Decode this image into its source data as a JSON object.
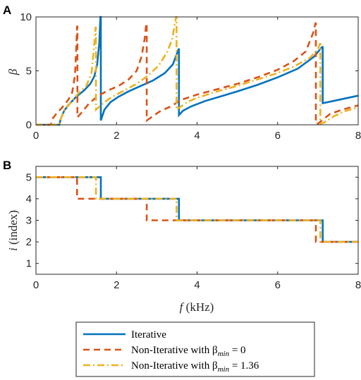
{
  "chart_data": [
    {
      "panel": "A",
      "type": "line",
      "xlabel": "",
      "ylabel": "β",
      "xlim": [
        0,
        8
      ],
      "ylim": [
        0,
        10
      ],
      "xticks": [
        0,
        2,
        4,
        6,
        8
      ],
      "yticks": [
        0,
        5,
        10
      ],
      "series": [
        {
          "name": "Iterative",
          "color": "#0072BD",
          "style": "solid",
          "points": [
            [
              0,
              0
            ],
            [
              0.58,
              0
            ],
            [
              0.62,
              0.6
            ],
            [
              0.7,
              1.3
            ],
            [
              0.8,
              1.8
            ],
            [
              1.0,
              2.6
            ],
            [
              1.2,
              3.2
            ],
            [
              1.35,
              3.8
            ],
            [
              1.45,
              4.5
            ],
            [
              1.52,
              5.6
            ],
            [
              1.57,
              7.5
            ],
            [
              1.6,
              10
            ],
            [
              1.61,
              10
            ],
            [
              1.61,
              0.4
            ],
            [
              1.7,
              1.4
            ],
            [
              1.85,
              2.1
            ],
            [
              2.05,
              2.6
            ],
            [
              2.3,
              3.1
            ],
            [
              2.6,
              3.6
            ],
            [
              2.9,
              4.1
            ],
            [
              3.2,
              4.8
            ],
            [
              3.4,
              5.6
            ],
            [
              3.54,
              7.0
            ],
            [
              3.55,
              7.0
            ],
            [
              3.55,
              0.9
            ],
            [
              3.65,
              1.3
            ],
            [
              3.85,
              1.7
            ],
            [
              4.2,
              2.2
            ],
            [
              4.6,
              2.65
            ],
            [
              5.0,
              3.1
            ],
            [
              5.5,
              3.7
            ],
            [
              6.0,
              4.4
            ],
            [
              6.5,
              5.2
            ],
            [
              6.9,
              6.3
            ],
            [
              7.1,
              7.2
            ],
            [
              7.12,
              7.2
            ],
            [
              7.12,
              2.0
            ],
            [
              7.5,
              2.3
            ],
            [
              8,
              2.7
            ]
          ]
        },
        {
          "name": "Non-Iterative with β_min = 0",
          "color": "#D95319",
          "style": "dashed",
          "points": [
            [
              0,
              0
            ],
            [
              0.37,
              0
            ],
            [
              0.4,
              0.5
            ],
            [
              0.5,
              1.0
            ],
            [
              0.65,
              1.6
            ],
            [
              0.8,
              2.3
            ],
            [
              0.9,
              3.0
            ],
            [
              0.97,
              4.6
            ],
            [
              1.0,
              7.0
            ],
            [
              1.02,
              9.1
            ],
            [
              1.03,
              9.1
            ],
            [
              1.03,
              0.7
            ],
            [
              1.15,
              1.2
            ],
            [
              1.3,
              1.9
            ],
            [
              1.45,
              2.4
            ],
            [
              1.6,
              2.8
            ],
            [
              1.8,
              3.2
            ],
            [
              2.05,
              3.6
            ],
            [
              2.3,
              4.2
            ],
            [
              2.5,
              5.0
            ],
            [
              2.62,
              6.3
            ],
            [
              2.7,
              8.0
            ],
            [
              2.74,
              9.4
            ],
            [
              2.75,
              9.4
            ],
            [
              2.75,
              0.4
            ],
            [
              2.9,
              0.8
            ],
            [
              3.1,
              1.3
            ],
            [
              3.35,
              1.7
            ],
            [
              3.6,
              2.3
            ],
            [
              4.0,
              2.8
            ],
            [
              4.5,
              3.3
            ],
            [
              5.0,
              3.8
            ],
            [
              5.5,
              4.4
            ],
            [
              6.0,
              5.1
            ],
            [
              6.4,
              5.9
            ],
            [
              6.7,
              6.8
            ],
            [
              6.88,
              8.5
            ],
            [
              6.94,
              9.4
            ],
            [
              6.95,
              9.4
            ],
            [
              6.95,
              0.1
            ],
            [
              7.0,
              0.1
            ],
            [
              7.1,
              0.4
            ],
            [
              7.3,
              1.0
            ],
            [
              7.6,
              1.4
            ],
            [
              8,
              1.8
            ]
          ]
        },
        {
          "name": "Non-Iterative with β_min = 1.36",
          "color": "#EDB120",
          "style": "dashdot",
          "points": [
            [
              0,
              0
            ],
            [
              0.58,
              0
            ],
            [
              0.62,
              0.6
            ],
            [
              0.7,
              1.3
            ],
            [
              0.85,
              2.0
            ],
            [
              1.05,
              2.9
            ],
            [
              1.25,
              3.6
            ],
            [
              1.38,
              4.8
            ],
            [
              1.45,
              7.5
            ],
            [
              1.48,
              9.0
            ],
            [
              1.49,
              9.0
            ],
            [
              1.49,
              1.4
            ],
            [
              1.7,
              2.1
            ],
            [
              1.9,
              2.6
            ],
            [
              2.2,
              3.2
            ],
            [
              2.5,
              3.8
            ],
            [
              2.8,
              4.6
            ],
            [
              3.05,
              5.5
            ],
            [
              3.25,
              6.7
            ],
            [
              3.38,
              7.9
            ],
            [
              3.45,
              9.4
            ],
            [
              3.48,
              10
            ],
            [
              3.49,
              10
            ],
            [
              3.49,
              1.4
            ],
            [
              3.75,
              2.1
            ],
            [
              4.0,
              2.5
            ],
            [
              4.5,
              3.1
            ],
            [
              5.0,
              3.6
            ],
            [
              5.5,
              4.2
            ],
            [
              6.0,
              4.8
            ],
            [
              6.4,
              5.4
            ],
            [
              6.8,
              6.2
            ],
            [
              7.0,
              7.0
            ],
            [
              7.05,
              7.5
            ],
            [
              7.06,
              7.5
            ],
            [
              7.06,
              0.1
            ],
            [
              7.15,
              0.2
            ],
            [
              7.4,
              0.8
            ],
            [
              7.7,
              1.3
            ],
            [
              8,
              1.6
            ]
          ]
        }
      ]
    },
    {
      "panel": "B",
      "type": "line",
      "xlabel": "f (kHz)",
      "ylabel": "i (index)",
      "xlim": [
        0,
        8
      ],
      "ylim": [
        0.5,
        5.5
      ],
      "xticks": [
        0,
        2,
        4,
        6,
        8
      ],
      "yticks": [
        1,
        2,
        3,
        4,
        5
      ],
      "series": [
        {
          "name": "Iterative",
          "color": "#0072BD",
          "style": "solid",
          "points": [
            [
              0,
              5
            ],
            [
              1.61,
              5
            ],
            [
              1.61,
              4
            ],
            [
              3.55,
              4
            ],
            [
              3.55,
              3
            ],
            [
              7.12,
              3
            ],
            [
              7.12,
              2
            ],
            [
              8,
              2
            ]
          ]
        },
        {
          "name": "Non-Iterative with β_min = 0",
          "color": "#D95319",
          "style": "dashed",
          "points": [
            [
              0,
              5
            ],
            [
              1.02,
              5
            ],
            [
              1.02,
              4
            ],
            [
              2.75,
              4
            ],
            [
              2.75,
              3
            ],
            [
              6.95,
              3
            ],
            [
              6.95,
              2
            ],
            [
              8,
              2
            ]
          ]
        },
        {
          "name": "Non-Iterative with β_min = 1.36",
          "color": "#EDB120",
          "style": "dashdot",
          "points": [
            [
              0,
              5
            ],
            [
              1.49,
              5
            ],
            [
              1.49,
              4
            ],
            [
              3.49,
              4
            ],
            [
              3.49,
              3
            ],
            [
              7.06,
              3
            ],
            [
              7.06,
              2
            ],
            [
              8,
              2
            ]
          ]
        }
      ]
    }
  ],
  "legend": {
    "items": [
      {
        "label": "Iterative",
        "sub": "",
        "suffix": ""
      },
      {
        "label": "Non-Iterative with β",
        "sub": "min",
        "suffix": " = 0"
      },
      {
        "label": "Non-Iterative with β",
        "sub": "min",
        "suffix": " = 1.36"
      }
    ]
  }
}
